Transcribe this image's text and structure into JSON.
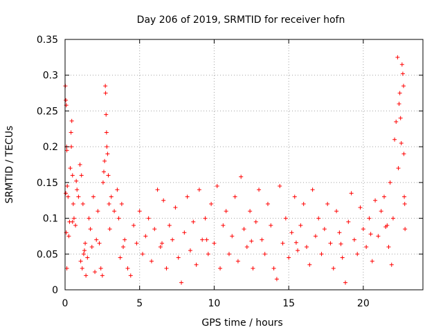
{
  "chart_data": {
    "type": "scatter",
    "title": "Day 206 of 2019, SRMTID for receiver hofn",
    "xlabel": "GPS time / hours",
    "ylabel": "SRMTID / TECUs",
    "xlim": [
      0,
      24
    ],
    "ylim": [
      0,
      0.35
    ],
    "x_ticks": [
      0,
      5,
      10,
      15,
      20
    ],
    "x_tick_labels": [
      "0",
      "5",
      "10",
      "15",
      "20"
    ],
    "y_ticks": [
      0,
      0.05,
      0.1,
      0.15,
      0.2,
      0.25,
      0.3,
      0.35
    ],
    "y_tick_labels": [
      "0",
      "0.05",
      "0.1",
      "0.15",
      "0.2",
      "0.25",
      "0.3",
      "0.35"
    ],
    "grid": true,
    "marker": "+",
    "color": "#ff0000",
    "series": [
      {
        "name": "SRMTID",
        "points": [
          [
            0.02,
            0.285
          ],
          [
            0.05,
            0.265
          ],
          [
            0.08,
            0.258
          ],
          [
            0.1,
            0.2
          ],
          [
            0.12,
            0.195
          ],
          [
            0.05,
            0.135
          ],
          [
            0.15,
            0.145
          ],
          [
            0.2,
            0.13
          ],
          [
            0.08,
            0.08
          ],
          [
            0.12,
            0.03
          ],
          [
            0.25,
            0.075
          ],
          [
            0.3,
            0.095
          ],
          [
            0.35,
            0.17
          ],
          [
            0.4,
            0.22
          ],
          [
            0.45,
            0.236
          ],
          [
            0.42,
            0.2
          ],
          [
            0.5,
            0.16
          ],
          [
            0.55,
            0.12
          ],
          [
            0.6,
            0.1
          ],
          [
            0.7,
            0.09
          ],
          [
            0.75,
            0.152
          ],
          [
            0.8,
            0.14
          ],
          [
            0.9,
            0.13
          ],
          [
            1.0,
            0.175
          ],
          [
            1.1,
            0.16
          ],
          [
            1.2,
            0.12
          ],
          [
            1.05,
            0.04
          ],
          [
            1.15,
            0.03
          ],
          [
            1.25,
            0.05
          ],
          [
            1.35,
            0.065
          ],
          [
            1.4,
            0.02
          ],
          [
            1.5,
            0.045
          ],
          [
            1.6,
            0.1
          ],
          [
            1.7,
            0.085
          ],
          [
            1.8,
            0.06
          ],
          [
            1.9,
            0.13
          ],
          [
            2.0,
            0.025
          ],
          [
            2.1,
            0.07
          ],
          [
            2.2,
            0.11
          ],
          [
            2.3,
            0.065
          ],
          [
            2.4,
            0.03
          ],
          [
            2.5,
            0.02
          ],
          [
            2.55,
            0.15
          ],
          [
            2.6,
            0.165
          ],
          [
            2.65,
            0.18
          ],
          [
            2.7,
            0.285
          ],
          [
            2.72,
            0.275
          ],
          [
            2.75,
            0.245
          ],
          [
            2.78,
            0.22
          ],
          [
            2.8,
            0.2
          ],
          [
            2.85,
            0.19
          ],
          [
            2.9,
            0.16
          ],
          [
            2.95,
            0.12
          ],
          [
            3.0,
            0.085
          ],
          [
            3.1,
            0.13
          ],
          [
            3.3,
            0.11
          ],
          [
            3.5,
            0.14
          ],
          [
            3.6,
            0.1
          ],
          [
            3.7,
            0.045
          ],
          [
            3.8,
            0.12
          ],
          [
            4.0,
            0.07
          ],
          [
            4.2,
            0.03
          ],
          [
            4.4,
            0.02
          ],
          [
            4.6,
            0.09
          ],
          [
            4.8,
            0.065
          ],
          [
            5.0,
            0.11
          ],
          [
            5.2,
            0.05
          ],
          [
            5.4,
            0.075
          ],
          [
            5.6,
            0.1
          ],
          [
            5.8,
            0.04
          ],
          [
            6.0,
            0.085
          ],
          [
            6.2,
            0.14
          ],
          [
            6.4,
            0.06
          ],
          [
            6.6,
            0.125
          ],
          [
            6.8,
            0.03
          ],
          [
            7.0,
            0.09
          ],
          [
            7.2,
            0.07
          ],
          [
            7.4,
            0.115
          ],
          [
            7.6,
            0.045
          ],
          [
            7.8,
            0.01
          ],
          [
            8.0,
            0.08
          ],
          [
            8.2,
            0.13
          ],
          [
            8.4,
            0.055
          ],
          [
            8.6,
            0.095
          ],
          [
            8.8,
            0.035
          ],
          [
            9.0,
            0.14
          ],
          [
            9.2,
            0.07
          ],
          [
            9.4,
            0.1
          ],
          [
            9.6,
            0.05
          ],
          [
            9.8,
            0.12
          ],
          [
            10.0,
            0.065
          ],
          [
            10.2,
            0.145
          ],
          [
            10.4,
            0.03
          ],
          [
            10.6,
            0.09
          ],
          [
            10.8,
            0.11
          ],
          [
            11.0,
            0.05
          ],
          [
            11.2,
            0.075
          ],
          [
            11.4,
            0.13
          ],
          [
            11.6,
            0.04
          ],
          [
            11.8,
            0.158
          ],
          [
            12.0,
            0.085
          ],
          [
            12.2,
            0.06
          ],
          [
            12.4,
            0.11
          ],
          [
            12.6,
            0.03
          ],
          [
            12.8,
            0.095
          ],
          [
            13.0,
            0.14
          ],
          [
            13.2,
            0.07
          ],
          [
            13.4,
            0.05
          ],
          [
            13.6,
            0.12
          ],
          [
            13.8,
            0.09
          ],
          [
            14.0,
            0.03
          ],
          [
            14.2,
            0.015
          ],
          [
            14.4,
            0.145
          ],
          [
            14.6,
            0.065
          ],
          [
            14.8,
            0.1
          ],
          [
            15.0,
            0.045
          ],
          [
            15.2,
            0.08
          ],
          [
            15.4,
            0.13
          ],
          [
            15.6,
            0.055
          ],
          [
            15.8,
            0.09
          ],
          [
            16.0,
            0.12
          ],
          [
            16.2,
            0.06
          ],
          [
            16.4,
            0.035
          ],
          [
            16.6,
            0.14
          ],
          [
            16.8,
            0.075
          ],
          [
            17.0,
            0.1
          ],
          [
            17.2,
            0.05
          ],
          [
            17.4,
            0.085
          ],
          [
            17.6,
            0.12
          ],
          [
            17.8,
            0.065
          ],
          [
            18.0,
            0.03
          ],
          [
            18.2,
            0.11
          ],
          [
            18.4,
            0.08
          ],
          [
            18.6,
            0.045
          ],
          [
            18.8,
            0.01
          ],
          [
            19.0,
            0.095
          ],
          [
            19.2,
            0.135
          ],
          [
            19.4,
            0.07
          ],
          [
            19.6,
            0.05
          ],
          [
            19.8,
            0.115
          ],
          [
            20.0,
            0.085
          ],
          [
            20.2,
            0.06
          ],
          [
            20.4,
            0.1
          ],
          [
            20.6,
            0.04
          ],
          [
            20.8,
            0.125
          ],
          [
            21.0,
            0.075
          ],
          [
            21.2,
            0.11
          ],
          [
            21.4,
            0.13
          ],
          [
            21.6,
            0.09
          ],
          [
            21.8,
            0.15
          ],
          [
            22.0,
            0.1
          ],
          [
            22.1,
            0.21
          ],
          [
            22.2,
            0.235
          ],
          [
            22.3,
            0.325
          ],
          [
            22.35,
            0.17
          ],
          [
            22.4,
            0.26
          ],
          [
            22.45,
            0.275
          ],
          [
            22.5,
            0.24
          ],
          [
            22.55,
            0.205
          ],
          [
            22.6,
            0.315
          ],
          [
            22.65,
            0.302
          ],
          [
            22.7,
            0.285
          ],
          [
            22.72,
            0.19
          ],
          [
            22.75,
            0.13
          ],
          [
            22.78,
            0.12
          ],
          [
            22.8,
            0.085
          ],
          [
            21.9,
            0.035
          ],
          [
            21.7,
            0.06
          ],
          [
            0.5,
            0.095
          ],
          [
            1.3,
            0.055
          ],
          [
            3.9,
            0.06
          ],
          [
            6.5,
            0.065
          ],
          [
            9.5,
            0.07
          ],
          [
            12.5,
            0.068
          ],
          [
            15.5,
            0.066
          ],
          [
            18.5,
            0.064
          ],
          [
            20.5,
            0.078
          ],
          [
            21.5,
            0.088
          ]
        ]
      }
    ]
  }
}
